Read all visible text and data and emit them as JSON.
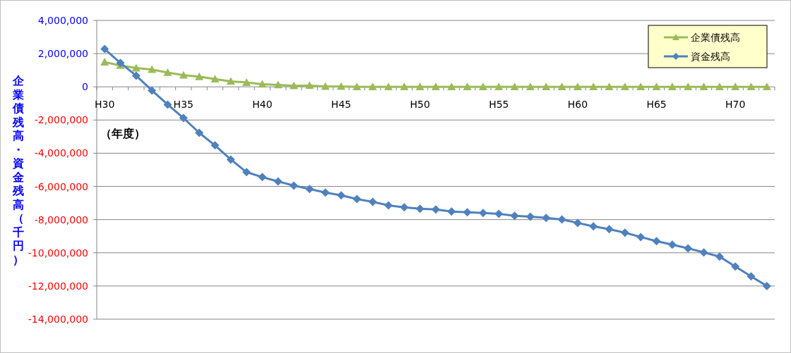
{
  "chart_data": {
    "type": "line",
    "ylabel": "企業債残高・資金残高（千円）",
    "annotations": [
      "（年度）"
    ],
    "categories": [
      "H30",
      null,
      null,
      null,
      null,
      "H35",
      null,
      null,
      null,
      null,
      "H40",
      null,
      null,
      null,
      null,
      "H45",
      null,
      null,
      null,
      null,
      "H50",
      null,
      null,
      null,
      null,
      "H55",
      null,
      null,
      null,
      null,
      "H60",
      null,
      null,
      null,
      null,
      "H65",
      null,
      null,
      null,
      null,
      "H70",
      null,
      null
    ],
    "series": [
      {
        "name": "企業債残高",
        "color": "#9bbb59",
        "marker": "triangle",
        "values": [
          1490000,
          1280000,
          1130000,
          1040000,
          860000,
          700000,
          610000,
          470000,
          330000,
          260000,
          160000,
          120000,
          60000,
          70000,
          20000,
          20000,
          0,
          0,
          0,
          0,
          0,
          0,
          0,
          0,
          0,
          0,
          0,
          0,
          0,
          0,
          0,
          0,
          0,
          0,
          0,
          0,
          0,
          0,
          0,
          0,
          0,
          0,
          0
        ]
      },
      {
        "name": "資金残高",
        "color": "#4f81bd",
        "marker": "diamond",
        "values": [
          2280000,
          1440000,
          670000,
          -220000,
          -1070000,
          -1880000,
          -2770000,
          -3530000,
          -4380000,
          -5140000,
          -5440000,
          -5700000,
          -5950000,
          -6160000,
          -6370000,
          -6540000,
          -6760000,
          -6930000,
          -7140000,
          -7260000,
          -7350000,
          -7390000,
          -7520000,
          -7560000,
          -7600000,
          -7650000,
          -7770000,
          -7820000,
          -7900000,
          -7990000,
          -8200000,
          -8410000,
          -8580000,
          -8790000,
          -9050000,
          -9300000,
          -9510000,
          -9730000,
          -9980000,
          -10230000,
          -10830000,
          -11420000,
          -12000000
        ]
      }
    ],
    "ylim": [
      -14000000,
      4000000
    ],
    "yticks": [
      {
        "value": -14000000,
        "label": "-14,000,000"
      },
      {
        "value": -12000000,
        "label": "-12,000,000"
      },
      {
        "value": -10000000,
        "label": "-10,000,000"
      },
      {
        "value": -8000000,
        "label": "-8,000,000"
      },
      {
        "value": -6000000,
        "label": "-6,000,000"
      },
      {
        "value": -4000000,
        "label": "-4,000,000"
      },
      {
        "value": -2000000,
        "label": "-2,000,000"
      },
      0,
      {
        "value": 2000000,
        "label": "2,000,000"
      },
      {
        "value": 4000000,
        "label": "4,000,000"
      }
    ],
    "grid": "y",
    "legend": "top right"
  }
}
